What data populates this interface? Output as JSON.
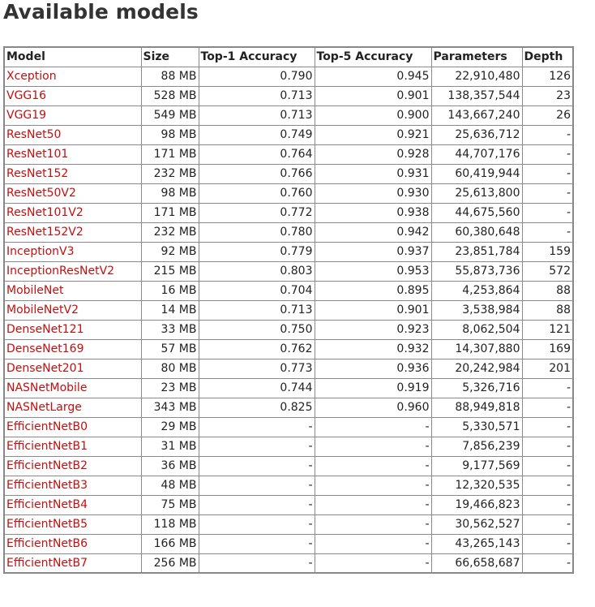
{
  "page": {
    "title": "Available models"
  },
  "colors": {
    "link": "#c30f0f",
    "border": "#8a8a8a",
    "text": "#222222"
  },
  "table": {
    "headers": [
      "Model",
      "Size",
      "Top-1 Accuracy",
      "Top-5 Accuracy",
      "Parameters",
      "Depth"
    ],
    "rows": [
      {
        "model": "Xception",
        "size": "88 MB",
        "top1": "0.790",
        "top5": "0.945",
        "params": "22,910,480",
        "depth": "126"
      },
      {
        "model": "VGG16",
        "size": "528 MB",
        "top1": "0.713",
        "top5": "0.901",
        "params": "138,357,544",
        "depth": "23"
      },
      {
        "model": "VGG19",
        "size": "549 MB",
        "top1": "0.713",
        "top5": "0.900",
        "params": "143,667,240",
        "depth": "26"
      },
      {
        "model": "ResNet50",
        "size": "98 MB",
        "top1": "0.749",
        "top5": "0.921",
        "params": "25,636,712",
        "depth": "-"
      },
      {
        "model": "ResNet101",
        "size": "171 MB",
        "top1": "0.764",
        "top5": "0.928",
        "params": "44,707,176",
        "depth": "-"
      },
      {
        "model": "ResNet152",
        "size": "232 MB",
        "top1": "0.766",
        "top5": "0.931",
        "params": "60,419,944",
        "depth": "-"
      },
      {
        "model": "ResNet50V2",
        "size": "98 MB",
        "top1": "0.760",
        "top5": "0.930",
        "params": "25,613,800",
        "depth": "-"
      },
      {
        "model": "ResNet101V2",
        "size": "171 MB",
        "top1": "0.772",
        "top5": "0.938",
        "params": "44,675,560",
        "depth": "-"
      },
      {
        "model": "ResNet152V2",
        "size": "232 MB",
        "top1": "0.780",
        "top5": "0.942",
        "params": "60,380,648",
        "depth": "-"
      },
      {
        "model": "InceptionV3",
        "size": "92 MB",
        "top1": "0.779",
        "top5": "0.937",
        "params": "23,851,784",
        "depth": "159"
      },
      {
        "model": "InceptionResNetV2",
        "size": "215 MB",
        "top1": "0.803",
        "top5": "0.953",
        "params": "55,873,736",
        "depth": "572"
      },
      {
        "model": "MobileNet",
        "size": "16 MB",
        "top1": "0.704",
        "top5": "0.895",
        "params": "4,253,864",
        "depth": "88"
      },
      {
        "model": "MobileNetV2",
        "size": "14 MB",
        "top1": "0.713",
        "top5": "0.901",
        "params": "3,538,984",
        "depth": "88"
      },
      {
        "model": "DenseNet121",
        "size": "33 MB",
        "top1": "0.750",
        "top5": "0.923",
        "params": "8,062,504",
        "depth": "121"
      },
      {
        "model": "DenseNet169",
        "size": "57 MB",
        "top1": "0.762",
        "top5": "0.932",
        "params": "14,307,880",
        "depth": "169"
      },
      {
        "model": "DenseNet201",
        "size": "80 MB",
        "top1": "0.773",
        "top5": "0.936",
        "params": "20,242,984",
        "depth": "201"
      },
      {
        "model": "NASNetMobile",
        "size": "23 MB",
        "top1": "0.744",
        "top5": "0.919",
        "params": "5,326,716",
        "depth": "-"
      },
      {
        "model": "NASNetLarge",
        "size": "343 MB",
        "top1": "0.825",
        "top5": "0.960",
        "params": "88,949,818",
        "depth": "-"
      },
      {
        "model": "EfficientNetB0",
        "size": "29 MB",
        "top1": "-",
        "top5": "-",
        "params": "5,330,571",
        "depth": "-"
      },
      {
        "model": "EfficientNetB1",
        "size": "31 MB",
        "top1": "-",
        "top5": "-",
        "params": "7,856,239",
        "depth": "-"
      },
      {
        "model": "EfficientNetB2",
        "size": "36 MB",
        "top1": "-",
        "top5": "-",
        "params": "9,177,569",
        "depth": "-"
      },
      {
        "model": "EfficientNetB3",
        "size": "48 MB",
        "top1": "-",
        "top5": "-",
        "params": "12,320,535",
        "depth": "-"
      },
      {
        "model": "EfficientNetB4",
        "size": "75 MB",
        "top1": "-",
        "top5": "-",
        "params": "19,466,823",
        "depth": "-"
      },
      {
        "model": "EfficientNetB5",
        "size": "118 MB",
        "top1": "-",
        "top5": "-",
        "params": "30,562,527",
        "depth": "-"
      },
      {
        "model": "EfficientNetB6",
        "size": "166 MB",
        "top1": "-",
        "top5": "-",
        "params": "43,265,143",
        "depth": "-"
      },
      {
        "model": "EfficientNetB7",
        "size": "256 MB",
        "top1": "-",
        "top5": "-",
        "params": "66,658,687",
        "depth": "-"
      }
    ]
  }
}
